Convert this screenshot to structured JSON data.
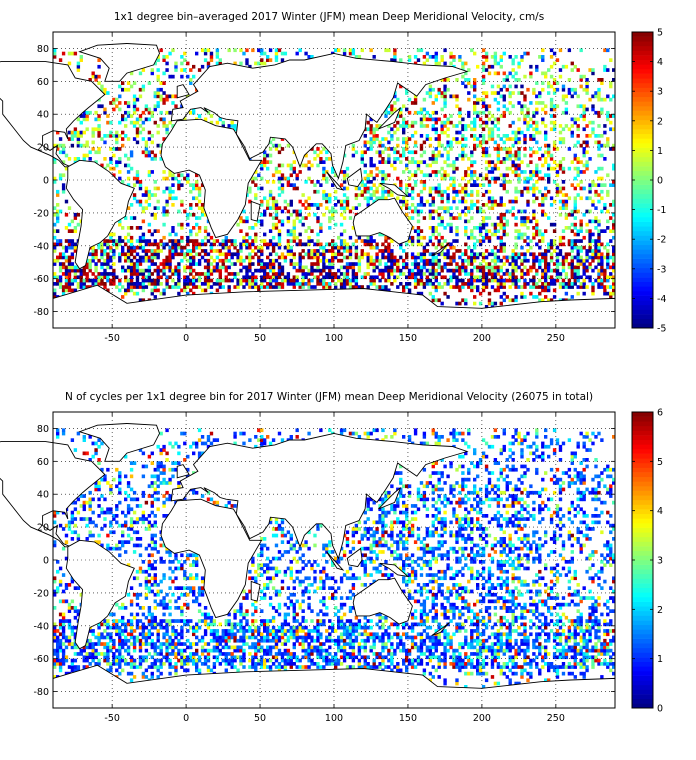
{
  "chart_data": [
    {
      "type": "heatmap",
      "title": "1x1 degree bin–averaged 2017 Winter (JFM) mean Deep Meridional Velocity, cm/s",
      "xlabel": "",
      "ylabel": "",
      "xlim": [
        -90,
        290
      ],
      "ylim": [
        -90,
        90
      ],
      "x_ticks": [
        -50,
        0,
        50,
        100,
        150,
        200,
        250
      ],
      "y_ticks": [
        80,
        60,
        40,
        20,
        0,
        -20,
        -40,
        -60,
        -80
      ],
      "grid": true,
      "grid_style": "dotted",
      "colorbar": {
        "min": -5,
        "max": 5,
        "ticks": [
          5,
          4,
          3,
          2,
          1,
          0,
          -1,
          -2,
          -3,
          -4,
          -5
        ],
        "colormap": "jet"
      },
      "units": "cm/s"
    },
    {
      "type": "heatmap",
      "title": "N of cycles per 1x1 degree bin for 2017 Winter (JFM) mean Deep Meridional Velocity (26075 in total)",
      "xlabel": "",
      "ylabel": "",
      "xlim": [
        -90,
        290
      ],
      "ylim": [
        -90,
        90
      ],
      "x_ticks": [
        -50,
        0,
        50,
        100,
        150,
        200,
        250
      ],
      "y_ticks": [
        80,
        60,
        40,
        20,
        0,
        -20,
        -40,
        -60,
        -80
      ],
      "grid": true,
      "grid_style": "dotted",
      "colorbar": {
        "min": 0,
        "max": 6,
        "ticks": [
          6,
          5,
          4,
          3,
          2,
          1,
          0
        ],
        "colormap": "jet"
      },
      "total_cycles": 26075
    }
  ]
}
